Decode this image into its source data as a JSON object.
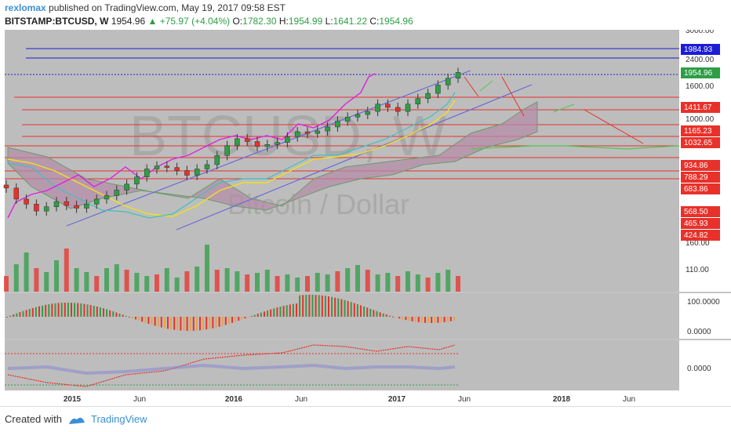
{
  "header": {
    "author": "rexlomax",
    "published_text": "published on TradingView.com, May 19, 2017 09:58 EST",
    "symbol": "BITSTAMP:BTCUSD, W",
    "last": "1954.96",
    "change": "▲ +75.97 (+4.04%)",
    "o_label": "O:",
    "o_value": "1782.30",
    "h_label": "H:",
    "h_value": "1954.99",
    "l_label": "L:",
    "l_value": "1641.22",
    "c_label": "C:",
    "c_value": "1954.96"
  },
  "watermark": {
    "title": "BTCUSD, W",
    "subtitle": "Bitcoin / Dollar"
  },
  "footer": {
    "created_with": "Created with",
    "brand": "TradingView"
  },
  "colors": {
    "background": "#bdbdbd",
    "axis_bg": "#ffffff",
    "price_up": "#2e9e45",
    "price_level_red": "#e8312a",
    "price_level_blue": "#1c1cd8",
    "price_level_green": "#2e9e45",
    "rsi_line": "#e020e0",
    "channel": "#6a6ad8",
    "cloud": "#b58aa8",
    "kijun": "#f0e020",
    "tenkan": "#40c0c0",
    "green_line": "#50c850"
  },
  "chart_data": {
    "type": "candlestick",
    "x_ticks": [
      "2015",
      "Jun",
      "2016",
      "Jun",
      "2017",
      "Jun",
      "2018",
      "Jun"
    ],
    "price_axis_ticks": [
      "3000.00",
      "2400.00",
      "1600.00",
      "1000.00",
      "160.00",
      "110.00"
    ],
    "price_labels": [
      {
        "value": "1984.93",
        "color": "#1c1cd8"
      },
      {
        "value": "1954.96",
        "color": "#2e9e45"
      },
      {
        "value": "1411.67",
        "color": "#e8312a"
      },
      {
        "value": "1165.23",
        "color": "#e8312a"
      },
      {
        "value": "1032.65",
        "color": "#e8312a"
      },
      {
        "value": "934.86",
        "color": "#e8312a"
      },
      {
        "value": "788.29",
        "color": "#e8312a"
      },
      {
        "value": "683.86",
        "color": "#e8312a"
      },
      {
        "value": "568.50",
        "color": "#e8312a"
      },
      {
        "value": "465.93",
        "color": "#e8312a"
      },
      {
        "value": "424.82",
        "color": "#e8312a"
      }
    ],
    "indicator1_ticks": [
      "100.0000",
      "0.0000"
    ],
    "indicator2_ticks": [
      "0.0000"
    ],
    "price_close_series": [
      310,
      260,
      240,
      215,
      230,
      250,
      235,
      225,
      240,
      260,
      275,
      300,
      330,
      370,
      420,
      440,
      430,
      410,
      380,
      420,
      450,
      520,
      610,
      680,
      650,
      600,
      620,
      640,
      700,
      760,
      740,
      770,
      820,
      900,
      960,
      1000,
      1050,
      1180,
      1120,
      1050,
      1180,
      1290,
      1400,
      1600,
      1780,
      1954
    ]
  }
}
